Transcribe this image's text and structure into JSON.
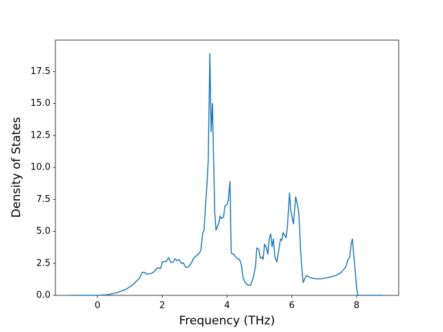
{
  "chart_data": {
    "type": "line",
    "xlabel": "Frequency (THz)",
    "ylabel": "Density of States",
    "color": "#1f77b4",
    "x": [
      -0.81,
      0,
      0.3,
      0.6,
      0.9,
      1.1,
      1.3,
      1.38,
      1.45,
      1.52,
      1.65,
      1.75,
      1.85,
      1.95,
      2.0,
      2.12,
      2.2,
      2.27,
      2.33,
      2.4,
      2.46,
      2.52,
      2.59,
      2.65,
      2.72,
      2.8,
      2.89,
      2.97,
      3.06,
      3.14,
      3.19,
      3.25,
      3.29,
      3.34,
      3.38,
      3.42,
      3.47,
      3.51,
      3.55,
      3.62,
      3.66,
      3.74,
      3.79,
      3.83,
      3.89,
      3.94,
      4.0,
      4.04,
      4.09,
      4.13,
      4.21,
      4.3,
      4.39,
      4.45,
      4.49,
      4.56,
      4.64,
      4.73,
      4.81,
      4.88,
      4.92,
      4.98,
      5.03,
      5.09,
      5.11,
      5.16,
      5.22,
      5.26,
      5.3,
      5.35,
      5.39,
      5.43,
      5.48,
      5.54,
      5.6,
      5.65,
      5.69,
      5.73,
      5.82,
      5.86,
      5.93,
      5.97,
      6.05,
      6.12,
      6.18,
      6.22,
      6.27,
      6.31,
      6.35,
      6.42,
      6.46,
      6.55,
      6.72,
      6.93,
      7.14,
      7.36,
      7.53,
      7.66,
      7.74,
      7.79,
      7.83,
      7.87,
      7.91,
      7.96,
      8.0,
      8.04,
      8.81
    ],
    "values": [
      0,
      0,
      0.05,
      0.2,
      0.5,
      0.85,
      1.35,
      1.8,
      1.8,
      1.65,
      1.7,
      1.85,
      2.15,
      2.1,
      2.6,
      2.65,
      2.95,
      2.55,
      2.6,
      2.85,
      2.7,
      2.8,
      2.5,
      2.55,
      2.2,
      2.2,
      2.5,
      2.9,
      3.1,
      3.3,
      3.5,
      4.9,
      5.1,
      7.2,
      8.6,
      10.6,
      18.9,
      12.8,
      15.0,
      6.5,
      5.1,
      5.6,
      6.2,
      6.0,
      6.1,
      7.0,
      7.1,
      7.5,
      8.9,
      3.3,
      3.2,
      2.9,
      2.8,
      2.3,
      1.4,
      1.0,
      0.8,
      0.8,
      1.4,
      2.3,
      3.7,
      3.6,
      2.9,
      3.0,
      2.8,
      4.0,
      3.7,
      3.2,
      4.4,
      4.8,
      3.8,
      4.4,
      3.0,
      2.6,
      3.6,
      4.4,
      4.3,
      4.9,
      4.5,
      5.2,
      8.0,
      6.6,
      5.6,
      7.7,
      7.0,
      6.3,
      3.6,
      2.1,
      1.0,
      1.4,
      1.55,
      1.4,
      1.3,
      1.3,
      1.4,
      1.55,
      1.8,
      2.2,
      2.8,
      3.0,
      4.0,
      4.4,
      3.2,
      1.8,
      0.6,
      0,
      0
    ],
    "xlim": [
      -1.3,
      9.3
    ],
    "xticks": [
      0,
      2,
      4,
      6,
      8
    ],
    "ylim": [
      0,
      19.95
    ],
    "yticks": [
      {
        "value": 0,
        "label": "0.0"
      },
      2.5,
      {
        "value": 5,
        "label": "5.0"
      },
      7.5,
      {
        "value": 10,
        "label": "10.0"
      },
      12.5,
      {
        "value": 15,
        "label": "15.0"
      },
      17.5
    ]
  }
}
